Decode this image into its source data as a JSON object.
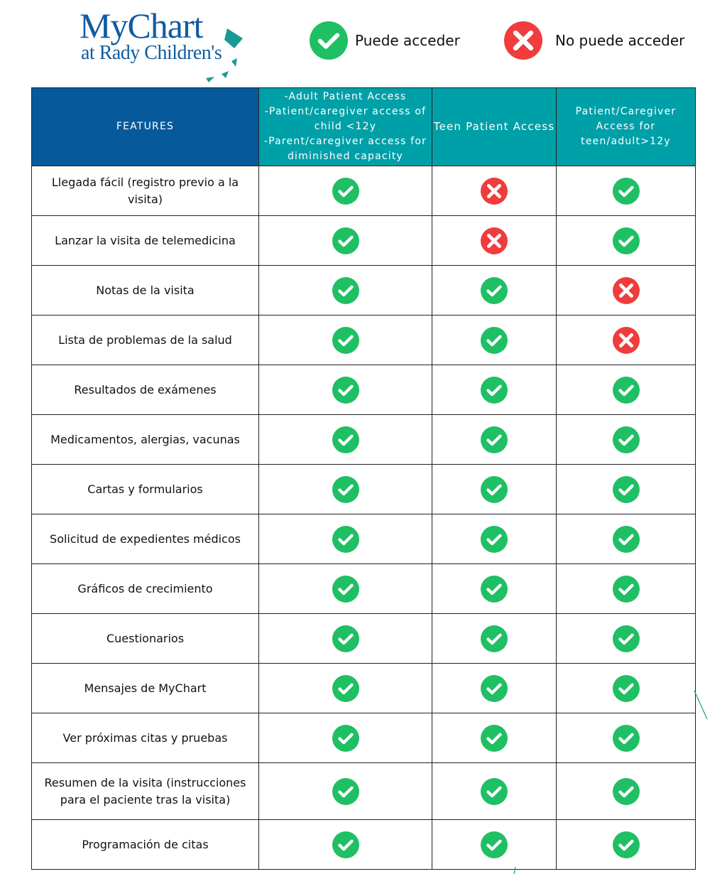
{
  "logo": {
    "line1": "MyChart",
    "line2": "at Rady Children's"
  },
  "legend": {
    "yes": "Puede acceder",
    "no": "No puede acceder"
  },
  "colors": {
    "header_features": "#065a9c",
    "header_columns": "#00a0a8",
    "yes": "#1fbf64",
    "no": "#f03c3c"
  },
  "table": {
    "headers": [
      "FEATURES",
      "-Adult Patient Access\n-Patient/caregiver access of child <12y\n-Parent/caregiver access for diminished capacity",
      "Teen Patient Access",
      "Patient/Caregiver Access for teen/adult>12y"
    ],
    "rows": [
      {
        "feature": "Llegada fácil (registro previo a la visita)",
        "access": [
          "yes",
          "no",
          "yes"
        ]
      },
      {
        "feature": "Lanzar la visita de telemedicina",
        "access": [
          "yes",
          "no",
          "yes"
        ]
      },
      {
        "feature": "Notas de la visita",
        "access": [
          "yes",
          "yes",
          "no"
        ]
      },
      {
        "feature": "Lista de problemas de la salud",
        "access": [
          "yes",
          "yes",
          "no"
        ]
      },
      {
        "feature": "Resultados de exámenes",
        "access": [
          "yes",
          "yes",
          "yes"
        ]
      },
      {
        "feature": "Medicamentos, alergias, vacunas",
        "access": [
          "yes",
          "yes",
          "yes"
        ]
      },
      {
        "feature": "Cartas y formularios",
        "access": [
          "yes",
          "yes",
          "yes"
        ]
      },
      {
        "feature": "Solicitud de expedientes médicos",
        "access": [
          "yes",
          "yes",
          "yes"
        ]
      },
      {
        "feature": "Gráficos de crecimiento",
        "access": [
          "yes",
          "yes",
          "yes"
        ]
      },
      {
        "feature": "Cuestionarios",
        "access": [
          "yes",
          "yes",
          "yes"
        ]
      },
      {
        "feature": "Mensajes de MyChart",
        "access": [
          "yes",
          "yes",
          "yes"
        ]
      },
      {
        "feature": "Ver próximas citas y pruebas",
        "access": [
          "yes",
          "yes",
          "yes"
        ]
      },
      {
        "feature": "Resumen de la visita (instrucciones para el paciente tras la visita)",
        "access": [
          "yes",
          "yes",
          "yes"
        ]
      },
      {
        "feature": "Programación de citas",
        "access": [
          "yes",
          "yes",
          "yes"
        ]
      }
    ]
  }
}
